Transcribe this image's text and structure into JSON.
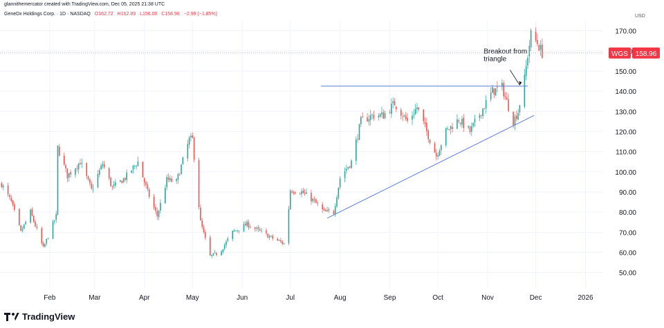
{
  "header": {
    "creator_line": "glannithemercator created with TradingView.com, Dec 05, 2025 21:38 UTC",
    "symbol": "GeneDx Holdings Corp. · 1D · NASDAQ",
    "open": "O162.72",
    "high": "H162.89",
    "low": "L156.00",
    "close": "C158.96",
    "change": "−2.99 (−1.85%)"
  },
  "footer": {
    "brand": "TradingView"
  },
  "colors": {
    "up": "#26a69a",
    "down": "#ef5350",
    "trend": "#5b7fd6",
    "price_tag": "#f23645",
    "grid": "#f0f3fa"
  },
  "chart_data": {
    "type": "candlestick",
    "ylim": [
      42,
      175
    ],
    "yticks": [
      50,
      60,
      70,
      80,
      90,
      100,
      110,
      120,
      130,
      140,
      150,
      160,
      170
    ],
    "ytick_labels": [
      "50.00",
      "60.00",
      "70.00",
      "80.00",
      "90.00",
      "100.00",
      "110.00",
      "120.00",
      "130.00",
      "140.00",
      "150.00",
      "160.00",
      "170.00"
    ],
    "currency": "USD",
    "xlim": [
      "2025-01-01",
      "2026-01-12"
    ],
    "xticks": [
      {
        "date": "2025-02-01",
        "label": "Feb"
      },
      {
        "date": "2025-03-01",
        "label": "Mar"
      },
      {
        "date": "2025-04-01",
        "label": "Apr"
      },
      {
        "date": "2025-05-01",
        "label": "May"
      },
      {
        "date": "2025-06-01",
        "label": "Jun"
      },
      {
        "date": "2025-07-01",
        "label": "Jul"
      },
      {
        "date": "2025-08-01",
        "label": "Aug"
      },
      {
        "date": "2025-09-01",
        "label": "Sep"
      },
      {
        "date": "2025-10-01",
        "label": "Oct"
      },
      {
        "date": "2025-11-01",
        "label": "Nov"
      },
      {
        "date": "2025-12-01",
        "label": "Dec"
      },
      {
        "date": "2026-01-01",
        "label": "2026"
      }
    ],
    "price_path": [
      [
        "2025-01-02",
        94
      ],
      [
        "2025-01-08",
        85
      ],
      [
        "2025-01-14",
        70
      ],
      [
        "2025-01-20",
        80
      ],
      [
        "2025-01-28",
        62
      ],
      [
        "2025-02-03",
        74
      ],
      [
        "2025-02-05",
        78
      ],
      [
        "2025-02-06",
        112
      ],
      [
        "2025-02-12",
        98
      ],
      [
        "2025-02-20",
        105
      ],
      [
        "2025-02-27",
        91
      ],
      [
        "2025-03-06",
        104
      ],
      [
        "2025-03-12",
        92
      ],
      [
        "2025-03-20",
        97
      ],
      [
        "2025-03-28",
        105
      ],
      [
        "2025-04-03",
        90
      ],
      [
        "2025-04-09",
        78
      ],
      [
        "2025-04-15",
        96
      ],
      [
        "2025-04-21",
        95
      ],
      [
        "2025-04-29",
        116
      ],
      [
        "2025-05-01",
        116
      ],
      [
        "2025-05-06",
        75
      ],
      [
        "2025-05-12",
        58
      ],
      [
        "2025-05-18",
        60
      ],
      [
        "2025-05-26",
        70
      ],
      [
        "2025-06-04",
        74
      ],
      [
        "2025-06-13",
        70
      ],
      [
        "2025-06-20",
        67
      ],
      [
        "2025-06-28",
        64
      ],
      [
        "2025-07-01",
        91
      ],
      [
        "2025-07-08",
        90
      ],
      [
        "2025-07-15",
        86
      ],
      [
        "2025-07-22",
        80
      ],
      [
        "2025-07-28",
        80
      ],
      [
        "2025-08-01",
        97
      ],
      [
        "2025-08-08",
        105
      ],
      [
        "2025-08-14",
        125
      ],
      [
        "2025-08-21",
        128
      ],
      [
        "2025-08-28",
        128
      ],
      [
        "2025-09-04",
        134
      ],
      [
        "2025-09-12",
        125
      ],
      [
        "2025-09-18",
        132
      ],
      [
        "2025-09-24",
        120
      ],
      [
        "2025-09-30",
        108
      ],
      [
        "2025-10-06",
        120
      ],
      [
        "2025-10-14",
        126
      ],
      [
        "2025-10-21",
        120
      ],
      [
        "2025-10-28",
        130
      ],
      [
        "2025-11-04",
        140
      ],
      [
        "2025-11-10",
        142
      ],
      [
        "2025-11-17",
        125
      ],
      [
        "2025-11-20",
        130
      ],
      [
        "2025-11-24",
        146
      ],
      [
        "2025-11-26",
        158
      ],
      [
        "2025-11-28",
        168
      ],
      [
        "2025-12-02",
        164
      ],
      [
        "2025-12-05",
        158.96
      ]
    ],
    "last_price": {
      "symbol": "WGS",
      "value": 158.96,
      "label": "158.96"
    },
    "resistance_line": {
      "from": [
        "2025-07-20",
        142.5
      ],
      "to": [
        "2025-11-26",
        142.5
      ]
    },
    "support_line": {
      "from": [
        "2025-07-24",
        77
      ],
      "to": [
        "2025-11-30",
        128
      ]
    },
    "annotation": {
      "text_lines": [
        "Breakout from",
        "triangle"
      ],
      "arrow_to": [
        "2025-11-21",
        143
      ]
    }
  }
}
